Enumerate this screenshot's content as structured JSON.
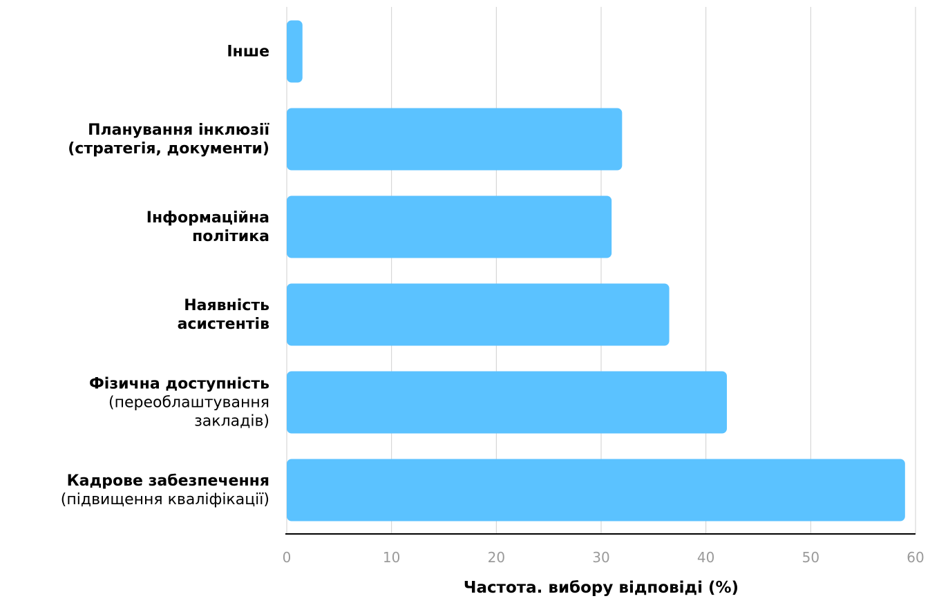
{
  "chart_data": {
    "type": "bar",
    "orientation": "horizontal",
    "title": "",
    "xlabel": "Частота. вибору відповіді (%)",
    "ylabel": "",
    "xlim": [
      0,
      60
    ],
    "xticks": [
      "0",
      "10",
      "20",
      "30",
      "40",
      "50",
      "60"
    ],
    "grid": true,
    "bar_color": "#5bc2ff",
    "categories": [
      {
        "bold": "Інше",
        "normal": ""
      },
      {
        "bold": "Планування інклюзії (стратегія, документи)",
        "normal": ""
      },
      {
        "bold": "Інформаційна політика",
        "normal": ""
      },
      {
        "bold": "Наявність асистентів",
        "normal": ""
      },
      {
        "bold": "Фізична доступність",
        "normal": "(переоблаштування закладів)"
      },
      {
        "bold": "Кадрове забезпечення",
        "normal": "(підвищення кваліфікації)"
      }
    ],
    "values": [
      1.5,
      32,
      31,
      36.5,
      42,
      59
    ]
  }
}
